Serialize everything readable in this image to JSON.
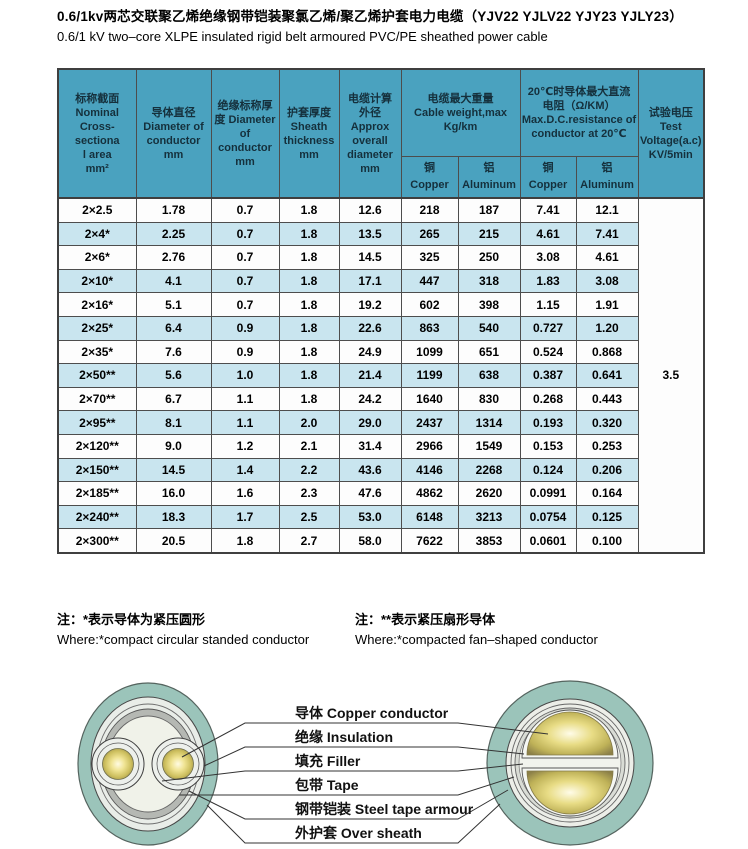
{
  "title": {
    "zh": "0.6/1kv两芯交联聚乙烯绝缘钢带铠装聚氯乙烯/聚乙烯护套电力电缆（YJV22  YJLV22  YJY23  YJLY23）",
    "en": "0.6/1 kV two–core XLPE insulated rigid belt armoured PVC/PE sheathed power cable"
  },
  "table": {
    "columns": [
      {
        "id": "cross-section",
        "lines": [
          "标称截面",
          "Nominal",
          "Cross-sectiona",
          "l area",
          "mm²"
        ]
      },
      {
        "id": "conductor-diameter",
        "lines": [
          "导体直径",
          "Diameter of",
          "conductor",
          "mm"
        ]
      },
      {
        "id": "insulation-thickness",
        "lines": [
          "绝缘标称厚",
          "度 Diameter",
          "of conductor",
          "mm"
        ]
      },
      {
        "id": "sheath-thickness",
        "lines": [
          "护套厚度",
          "Sheath",
          "thickness",
          "mm"
        ]
      },
      {
        "id": "overall-diameter",
        "lines": [
          "电缆计算",
          "外径",
          "Approx",
          "overall",
          "diameter",
          "mm"
        ]
      },
      {
        "id": "cable-weight",
        "lines": [
          "电缆最大重量",
          "Cable weight,max",
          "Kg/km"
        ]
      },
      {
        "id": "dc-resistance",
        "lines": [
          "20℃时导体最大直流",
          "电阻（Ω/KM）",
          "Max.D.C.resistance of",
          "conductor at 20℃"
        ]
      },
      {
        "id": "test-voltage",
        "lines": [
          "试验电压",
          "Test",
          "Voltage(a.c)",
          "KV/5min"
        ]
      }
    ],
    "sub_headers": [
      {
        "zh": "铜",
        "en": "Copper"
      },
      {
        "zh": "铝",
        "en": "Aluminum"
      },
      {
        "zh": "铜",
        "en": "Copper"
      },
      {
        "zh": "铝",
        "en": "Aluminum"
      }
    ],
    "rows": [
      [
        "2×2.5",
        "1.78",
        "0.7",
        "1.8",
        "12.6",
        "218",
        "187",
        "7.41",
        "12.1"
      ],
      [
        "2×4*",
        "2.25",
        "0.7",
        "1.8",
        "13.5",
        "265",
        "215",
        "4.61",
        "7.41"
      ],
      [
        "2×6*",
        "2.76",
        "0.7",
        "1.8",
        "14.5",
        "325",
        "250",
        "3.08",
        "4.61"
      ],
      [
        "2×10*",
        "4.1",
        "0.7",
        "1.8",
        "17.1",
        "447",
        "318",
        "1.83",
        "3.08"
      ],
      [
        "2×16*",
        "5.1",
        "0.7",
        "1.8",
        "19.2",
        "602",
        "398",
        "1.15",
        "1.91"
      ],
      [
        "2×25*",
        "6.4",
        "0.9",
        "1.8",
        "22.6",
        "863",
        "540",
        "0.727",
        "1.20"
      ],
      [
        "2×35*",
        "7.6",
        "0.9",
        "1.8",
        "24.9",
        "1099",
        "651",
        "0.524",
        "0.868"
      ],
      [
        "2×50**",
        "5.6",
        "1.0",
        "1.8",
        "21.4",
        "1199",
        "638",
        "0.387",
        "0.641"
      ],
      [
        "2×70**",
        "6.7",
        "1.1",
        "1.8",
        "24.2",
        "1640",
        "830",
        "0.268",
        "0.443"
      ],
      [
        "2×95**",
        "8.1",
        "1.1",
        "2.0",
        "29.0",
        "2437",
        "1314",
        "0.193",
        "0.320"
      ],
      [
        "2×120**",
        "9.0",
        "1.2",
        "2.1",
        "31.4",
        "2966",
        "1549",
        "0.153",
        "0.253"
      ],
      [
        "2×150**",
        "14.5",
        "1.4",
        "2.2",
        "43.6",
        "4146",
        "2268",
        "0.124",
        "0.206"
      ],
      [
        "2×185**",
        "16.0",
        "1.6",
        "2.3",
        "47.6",
        "4862",
        "2620",
        "0.0991",
        "0.164"
      ],
      [
        "2×240**",
        "18.3",
        "1.7",
        "2.5",
        "53.0",
        "6148",
        "3213",
        "0.0754",
        "0.125"
      ],
      [
        "2×300**",
        "20.5",
        "1.8",
        "2.7",
        "58.0",
        "7622",
        "3853",
        "0.0601",
        "0.100"
      ]
    ],
    "test_voltage": "3.5"
  },
  "notes": {
    "left": {
      "zh": "注：*表示导体为紧压圆形",
      "en": "Where:*compact circular standed conductor"
    },
    "right": {
      "zh": "注：**表示紧压扇形导体",
      "en": "Where:*compacted fan–shaped conductor"
    }
  },
  "diagram": {
    "labels": [
      "导体 Copper conductor",
      "绝缘 Insulation",
      "填充 Filler",
      "包带 Tape",
      "钢带铠装 Steel tape armour",
      "外护套 Over sheath"
    ]
  },
  "colors": {
    "header_bg": "#4aa2bf",
    "row_stripe": "#c9e5ef",
    "table_border": "#4d4d4d",
    "sheath_teal": "#9bc4ba",
    "armour_gray": "#b5b8b3",
    "conductor_gold": "#e2d578"
  }
}
